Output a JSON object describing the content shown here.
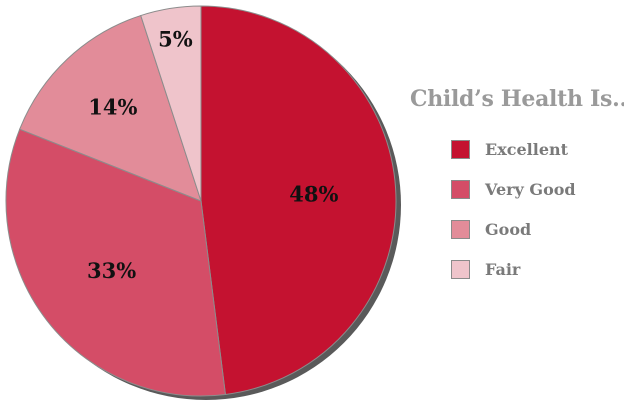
{
  "chart_data": {
    "type": "pie",
    "title": "Child’s Health Is...",
    "legend_position": "right",
    "categories": [
      "Excellent",
      "Very Good",
      "Good",
      "Fair"
    ],
    "values": [
      48,
      33,
      14,
      5
    ],
    "labels": [
      "48%",
      "33%",
      "14%",
      "5%"
    ],
    "colors": [
      "#c41230",
      "#d44d67",
      "#e28c99",
      "#efc4cb"
    ]
  }
}
